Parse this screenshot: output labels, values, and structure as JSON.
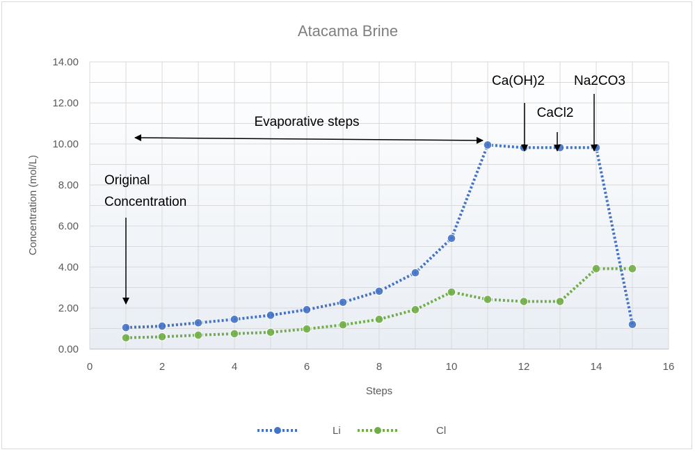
{
  "chart_data": {
    "type": "line",
    "title": "Atacama Brine",
    "xlabel": "Steps",
    "ylabel": "Concentration (mol/L)",
    "xlim": [
      0,
      16
    ],
    "ylim": [
      0,
      14
    ],
    "x_ticks": [
      0,
      2,
      4,
      6,
      8,
      10,
      12,
      14,
      16
    ],
    "y_ticks": [
      "0.00",
      "2.00",
      "4.00",
      "6.00",
      "8.00",
      "10.00",
      "12.00",
      "14.00"
    ],
    "y_tick_values": [
      0,
      2,
      4,
      6,
      8,
      10,
      12,
      14
    ],
    "grid": true,
    "legend_position": "bottom",
    "x": [
      1,
      2,
      3,
      4,
      5,
      6,
      7,
      8,
      9,
      10,
      11,
      12,
      13,
      14,
      15
    ],
    "series": [
      {
        "name": "Li",
        "color": "#4472c4",
        "values": [
          1.05,
          1.12,
          1.28,
          1.45,
          1.65,
          1.92,
          2.28,
          2.82,
          3.72,
          5.4,
          9.95,
          9.82,
          9.82,
          9.82,
          1.2
        ]
      },
      {
        "name": "Cl",
        "color": "#70ad47",
        "values": [
          0.55,
          0.6,
          0.68,
          0.75,
          0.82,
          0.98,
          1.18,
          1.45,
          1.92,
          2.78,
          2.42,
          2.32,
          2.32,
          3.92,
          3.92
        ]
      }
    ],
    "annotations": [
      {
        "text": "Evaporative steps",
        "type": "double-arrow"
      },
      {
        "lines": [
          "Original",
          "Concentration"
        ],
        "type": "arrow"
      },
      {
        "text": "Ca(OH)2",
        "type": "arrow"
      },
      {
        "text": "CaCl2",
        "type": "arrow"
      },
      {
        "text": "Na2CO3",
        "type": "arrow"
      }
    ]
  }
}
